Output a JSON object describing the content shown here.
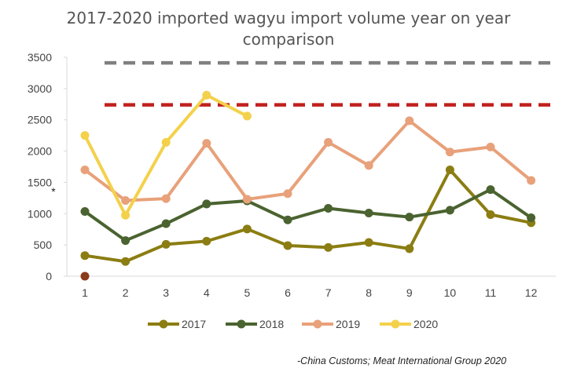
{
  "chart_data": {
    "type": "line",
    "title": "2017-2020 imported wagyu import volume year on year comparison",
    "title_lines": [
      "2017-2020 imported wagyu import volume year on year",
      "comparison"
    ],
    "categories": [
      "1",
      "2",
      "3",
      "4",
      "5",
      "6",
      "7",
      "8",
      "9",
      "10",
      "11",
      "12"
    ],
    "ylim": [
      0,
      3500
    ],
    "yticks": [
      "0",
      "500",
      "1000",
      "1500",
      "2000",
      "2500",
      "3000",
      "3500"
    ],
    "grid": false,
    "legend_position": "bottom",
    "series": [
      {
        "name": "2017",
        "color": "#8B7D12",
        "values": [
          330,
          235,
          510,
          560,
          755,
          490,
          460,
          540,
          440,
          1700,
          985,
          855
        ]
      },
      {
        "name": "2018",
        "color": "#4A6330",
        "values": [
          1035,
          570,
          840,
          1155,
          1205,
          900,
          1085,
          1010,
          945,
          1055,
          1385,
          935
        ]
      },
      {
        "name": "2019",
        "color": "#E8A17A",
        "values": [
          1700,
          1210,
          1240,
          2125,
          1230,
          1320,
          2140,
          1770,
          2485,
          1985,
          2065,
          1530
        ]
      },
      {
        "name": "2020",
        "color": "#F4D14B",
        "values": [
          2250,
          975,
          2140,
          2895,
          2560,
          null,
          null,
          null,
          null,
          null,
          null,
          null
        ]
      }
    ],
    "reference_lines": [
      {
        "value": 3410,
        "color": "#808080",
        "style": "dashed"
      },
      {
        "value": 2740,
        "color": "#C0201E",
        "style": "dashed"
      }
    ],
    "annotations": [
      {
        "text": "*"
      }
    ],
    "extra_point": {
      "x": "1",
      "y": 0,
      "color": "#8B3A1A"
    },
    "source": "-China Customs; Meat International Group 2020"
  }
}
